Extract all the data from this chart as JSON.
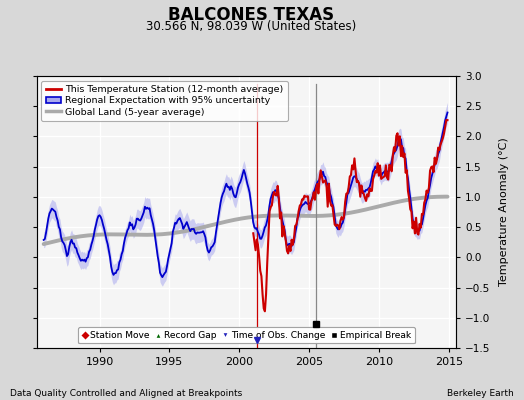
{
  "title": "BALCONES TEXAS",
  "subtitle": "30.566 N, 98.039 W (United States)",
  "ylabel": "Temperature Anomaly (°C)",
  "xlabel_left": "Data Quality Controlled and Aligned at Breakpoints",
  "xlabel_right": "Berkeley Earth",
  "ylim": [
    -1.5,
    3.0
  ],
  "xlim": [
    1985.5,
    2015.5
  ],
  "xticks": [
    1990,
    1995,
    2000,
    2005,
    2010,
    2015
  ],
  "yticks": [
    -1.5,
    -1.0,
    -0.5,
    0.0,
    0.5,
    1.0,
    1.5,
    2.0,
    2.5,
    3.0
  ],
  "bg_color": "#d8d8d8",
  "plot_bg_color": "#f5f5f5",
  "grid_color": "white",
  "empirical_break_x": 2005.5,
  "time_obs_change_x": 2001.3,
  "obs_change_color": "#2222bb",
  "station_move_color": "#cc0000",
  "record_gap_color": "#006600",
  "empirical_break_color": "black",
  "regional_line_color": "#0000cc",
  "regional_fill_color": "#aaaaee",
  "global_line_color": "#aaaaaa",
  "station_line_color": "#cc0000",
  "legend1_items": [
    "This Temperature Station (12-month average)",
    "Regional Expectation with 95% uncertainty",
    "Global Land (5-year average)"
  ],
  "legend2_items": [
    "Station Move",
    "Record Gap",
    "Time of Obs. Change",
    "Empirical Break"
  ]
}
